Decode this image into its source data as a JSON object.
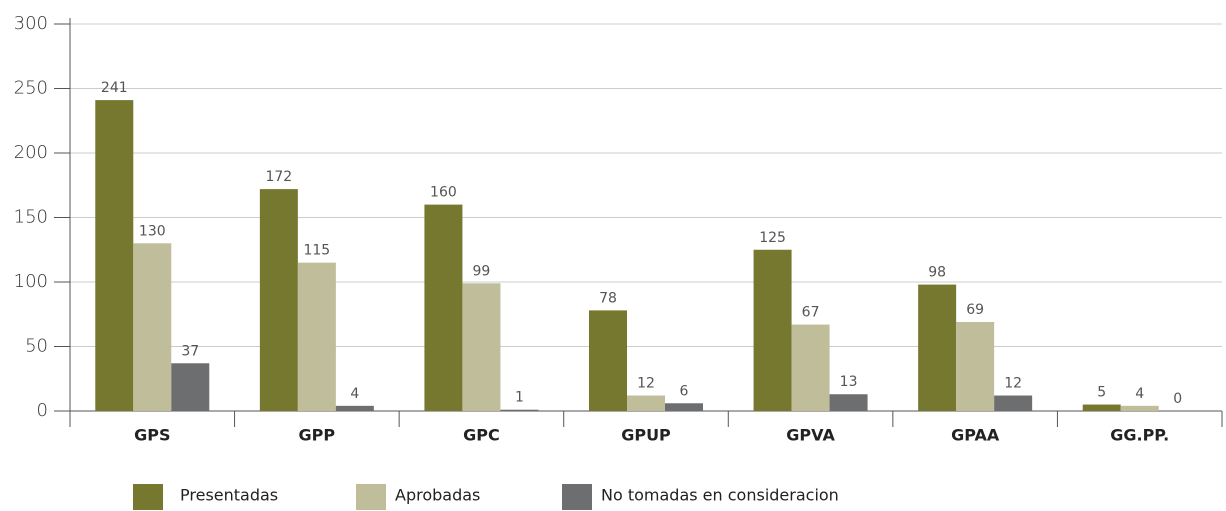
{
  "chart_data": {
    "type": "bar",
    "categories": [
      "GPS",
      "GPP",
      "GPC",
      "GPUP",
      "GPVA",
      "GPAA",
      "GG.PP."
    ],
    "series": [
      {
        "name": "Presentadas",
        "color": "#76782f",
        "values": [
          241,
          172,
          160,
          78,
          125,
          98,
          5
        ]
      },
      {
        "name": "Aprobadas",
        "color": "#bfbd9a",
        "values": [
          130,
          115,
          99,
          12,
          67,
          69,
          4
        ]
      },
      {
        "name": "No tomadas en consideracion",
        "color": "#6d6e70",
        "values": [
          37,
          4,
          1,
          6,
          13,
          12,
          0
        ]
      }
    ],
    "ylim": [
      0,
      300
    ],
    "yticks": [
      0,
      50,
      100,
      150,
      200,
      250,
      300
    ],
    "grid": true,
    "legend": "bottom"
  }
}
